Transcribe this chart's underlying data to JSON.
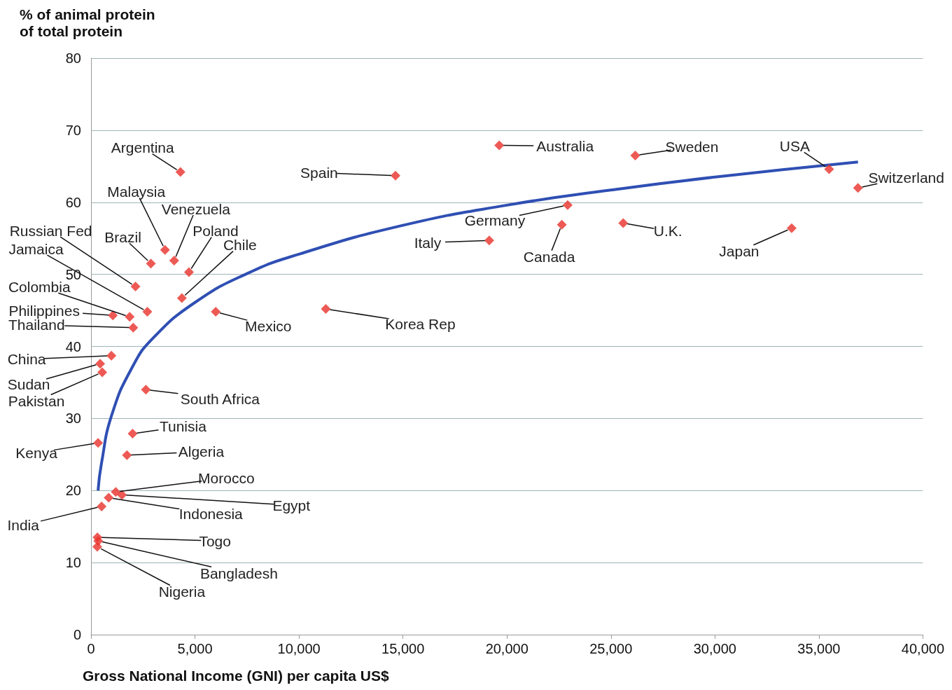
{
  "chart_data": {
    "type": "scatter",
    "xlabel": "Gross National Income (GNI) per capita US$",
    "ylabel": "% of animal protein\nof total protein",
    "xlim": [
      0,
      40000
    ],
    "xticks": [
      {
        "value": 0,
        "label": "0"
      },
      {
        "value": 5000,
        "label": "5,000"
      },
      {
        "value": 10000,
        "label": "10,000"
      },
      {
        "value": 15000,
        "label": "15,000"
      },
      {
        "value": 20000,
        "label": "20,000"
      },
      {
        "value": 25000,
        "label": "25,000"
      },
      {
        "value": 30000,
        "label": "30,000"
      },
      {
        "value": 35000,
        "label": "35,000"
      },
      {
        "value": 40000,
        "label": "40,000"
      }
    ],
    "ylim": [
      0,
      80
    ],
    "yticks": [
      0,
      10,
      20,
      30,
      40,
      50,
      60,
      70,
      80
    ],
    "grid": "y",
    "marker": "diamond",
    "series": [
      {
        "type": "scatter",
        "color": "#e8312a",
        "x": [
          4300,
          14640,
          19630,
          26170,
          35490,
          36880,
          22920,
          22640,
          25590,
          33690,
          19150,
          3560,
          4000,
          2880,
          4710,
          4370,
          2140,
          2710,
          1860,
          1050,
          2030,
          6000,
          11290,
          980,
          440,
          540,
          2640,
          2000,
          340,
          1730,
          1190,
          1490,
          850,
          510,
          310,
          350,
          300
        ],
        "values": [
          64.2,
          63.7,
          67.9,
          66.5,
          64.6,
          62.0,
          59.6,
          56.9,
          57.1,
          56.4,
          54.7,
          53.4,
          51.9,
          51.5,
          50.3,
          46.7,
          48.3,
          44.8,
          44.1,
          44.3,
          42.6,
          44.8,
          45.2,
          38.7,
          37.6,
          36.4,
          34.0,
          27.9,
          26.6,
          24.9,
          19.8,
          19.4,
          19.0,
          17.8,
          13.5,
          13.0,
          12.2
        ]
      },
      {
        "type": "line",
        "color": "#2f4fb3",
        "marker": "none",
        "x": [
          340,
          500,
          1000,
          2000,
          3000,
          5000,
          7500,
          10000,
          15000,
          20000,
          25000,
          30000,
          36880
        ],
        "values": [
          20,
          23.7,
          30.5,
          37.2,
          41.2,
          46.1,
          50.1,
          52.8,
          56.8,
          59.6,
          61.7,
          63.5,
          65.6
        ]
      }
    ],
    "annotations": [
      {
        "text": "Argentina",
        "x": 4300,
        "y": 64.2
      },
      {
        "text": "Spain",
        "x": 14640,
        "y": 63.7
      },
      {
        "text": "Australia",
        "x": 19630,
        "y": 67.9
      },
      {
        "text": "Sweden",
        "x": 26170,
        "y": 66.5
      },
      {
        "text": "USA",
        "x": 35490,
        "y": 64.6
      },
      {
        "text": "Switzerland",
        "x": 36880,
        "y": 62.0
      },
      {
        "text": "Germany",
        "x": 22920,
        "y": 59.6
      },
      {
        "text": "Canada",
        "x": 22640,
        "y": 56.9
      },
      {
        "text": "U.K.",
        "x": 25590,
        "y": 57.1
      },
      {
        "text": "Japan",
        "x": 33690,
        "y": 56.4
      },
      {
        "text": "Italy",
        "x": 19150,
        "y": 54.7
      },
      {
        "text": "Malaysia",
        "x": 3560,
        "y": 53.4
      },
      {
        "text": "Venezuela",
        "x": 4000,
        "y": 51.9
      },
      {
        "text": "Brazil",
        "x": 2880,
        "y": 51.5
      },
      {
        "text": "Poland",
        "x": 4710,
        "y": 50.3
      },
      {
        "text": "Chile",
        "x": 4370,
        "y": 46.7
      },
      {
        "text": "Russian Fed",
        "x": 2140,
        "y": 48.3
      },
      {
        "text": "Jamaica",
        "x": 2710,
        "y": 44.8
      },
      {
        "text": "Colombia",
        "x": 1860,
        "y": 44.1
      },
      {
        "text": "Philippines",
        "x": 1050,
        "y": 44.3
      },
      {
        "text": "Thailand",
        "x": 2030,
        "y": 42.6
      },
      {
        "text": "Mexico",
        "x": 6000,
        "y": 44.8
      },
      {
        "text": "Korea Rep",
        "x": 11290,
        "y": 45.2
      },
      {
        "text": "China",
        "x": 980,
        "y": 38.7
      },
      {
        "text": "Sudan",
        "x": 440,
        "y": 37.6
      },
      {
        "text": "Pakistan",
        "x": 540,
        "y": 36.4
      },
      {
        "text": "South Africa",
        "x": 2640,
        "y": 34.0
      },
      {
        "text": "Tunisia",
        "x": 2000,
        "y": 27.9
      },
      {
        "text": "Kenya",
        "x": 340,
        "y": 26.6
      },
      {
        "text": "Algeria",
        "x": 1730,
        "y": 24.9
      },
      {
        "text": "Morocco",
        "x": 1190,
        "y": 19.8
      },
      {
        "text": "Egypt",
        "x": 1490,
        "y": 19.4
      },
      {
        "text": "Indonesia",
        "x": 850,
        "y": 19.0
      },
      {
        "text": "India",
        "x": 510,
        "y": 17.8
      },
      {
        "text": "Togo",
        "x": 310,
        "y": 13.5
      },
      {
        "text": "Bangladesh",
        "x": 350,
        "y": 13.0
      },
      {
        "text": "Nigeria",
        "x": 300,
        "y": 12.2
      }
    ]
  }
}
